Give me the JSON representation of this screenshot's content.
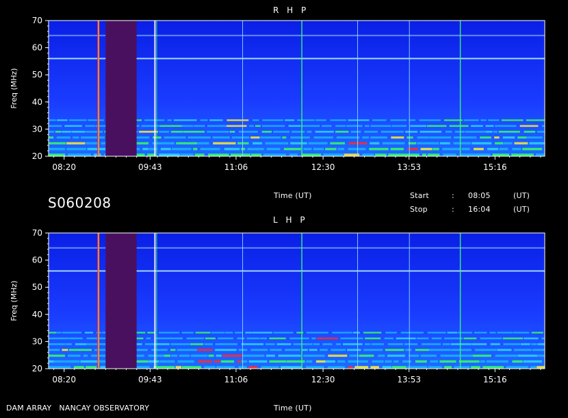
{
  "header": {
    "observation_id": "S060208",
    "start_label": "Start",
    "stop_label": "Stop",
    "colon": ":",
    "start_time": "08:05",
    "stop_time": "16:04",
    "time_unit": "(UT)"
  },
  "footer": {
    "instrument": "DAM ARRAY   NANCAY OBSERVATORY"
  },
  "colors": {
    "background": "#000000",
    "plot_bg_low": "#0a1fe6",
    "plot_bg_high": "#1a3cff",
    "band_green": "#33ff66",
    "band_yellow": "#ffee33",
    "band_red": "#ff2b2b",
    "gap_purple": "#4a1060",
    "interference_line": "#aadfff"
  },
  "chart_data": [
    {
      "type": "heatmap",
      "title": "R H P",
      "xlabel": "Time (UT)",
      "ylabel": "Freq (MHz)",
      "x_tick_labels": [
        "08:20",
        "09:43",
        "11:06",
        "12:30",
        "13:53",
        "15:16"
      ],
      "x_range": [
        "08:05",
        "16:04"
      ],
      "y_ticks": [
        20,
        30,
        40,
        50,
        60,
        70
      ],
      "y_range": [
        20,
        70
      ],
      "data_gap": [
        "09:00",
        "09:30"
      ],
      "interference_freqs": [
        56,
        64.5
      ],
      "emission_band_max_freq": 35,
      "colorscale": [
        "blue",
        "cyan",
        "green",
        "yellow",
        "red",
        "white"
      ]
    },
    {
      "type": "heatmap",
      "title": "L H P",
      "xlabel": "Time (UT)",
      "ylabel": "Freq (MHz)",
      "x_tick_labels": [
        "08:20",
        "09:43",
        "11:06",
        "12:30",
        "13:53",
        "15:16"
      ],
      "x_range": [
        "08:05",
        "16:04"
      ],
      "y_ticks": [
        20,
        30,
        40,
        50,
        60,
        70
      ],
      "y_range": [
        20,
        70
      ],
      "data_gap": [
        "09:00",
        "09:30"
      ],
      "interference_freqs": [
        56,
        64.5
      ],
      "emission_band_max_freq": 35,
      "colorscale": [
        "blue",
        "cyan",
        "green",
        "yellow",
        "red",
        "white"
      ]
    }
  ]
}
